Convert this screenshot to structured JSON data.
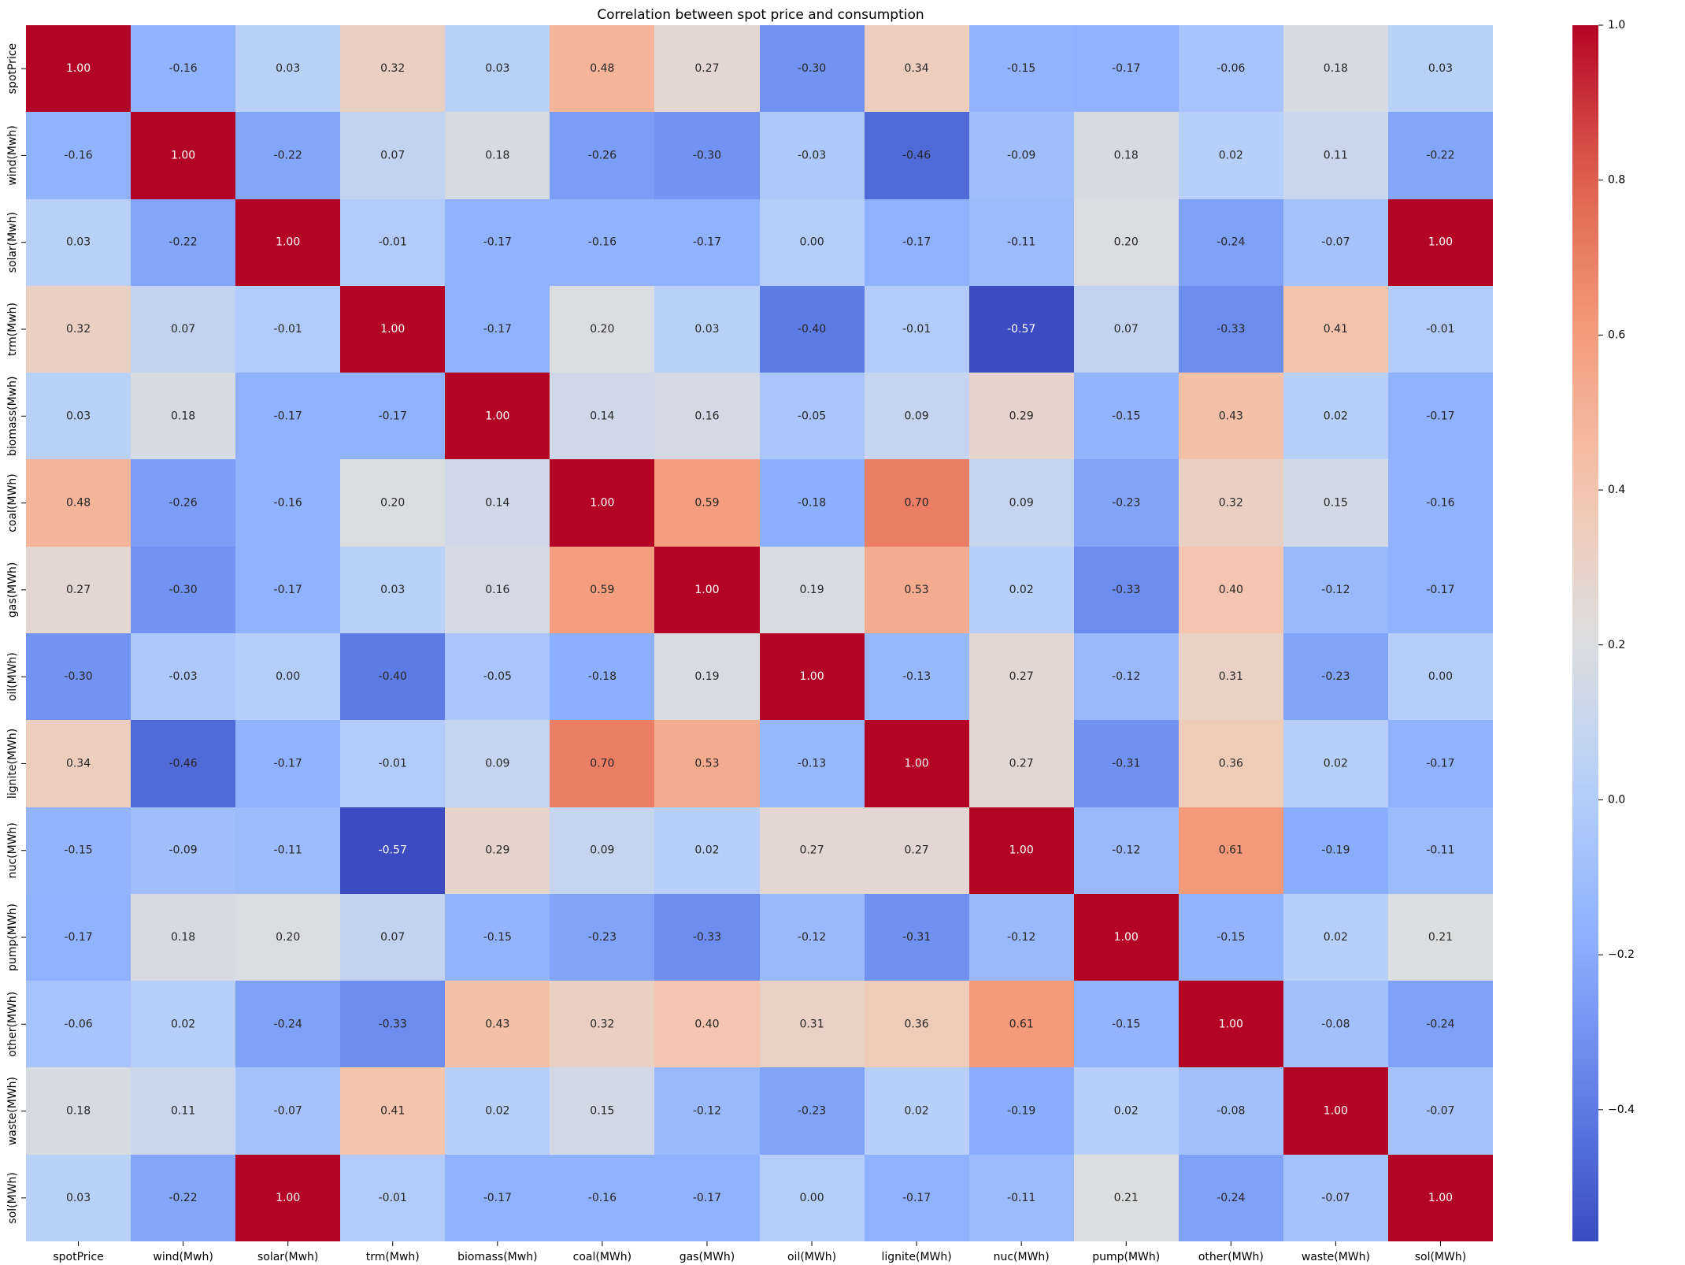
{
  "chart_data": {
    "type": "heatmap",
    "title": "Correlation between spot price and consumption",
    "xlabel": "",
    "ylabel": "",
    "x_labels": [
      "spotPrice",
      "wind(Mwh)",
      "solar(Mwh)",
      "trm(Mwh)",
      "biomass(Mwh)",
      "coal(MWh)",
      "gas(MWh)",
      "oil(MWh)",
      "lignite(MWh)",
      "nuc(MWh)",
      "pump(MWh)",
      "other(MWh)",
      "waste(MWh)",
      "sol(MWh)"
    ],
    "y_labels": [
      "spotPrice",
      "wind(Mwh)",
      "solar(Mwh)",
      "trm(Mwh)",
      "biomass(Mwh)",
      "coal(MWh)",
      "gas(MWh)",
      "oil(MWh)",
      "lignite(MWh)",
      "nuc(MWh)",
      "pump(MWh)",
      "other(MWh)",
      "waste(MWh)",
      "sol(MWh)"
    ],
    "values": [
      [
        1.0,
        -0.16,
        0.03,
        0.32,
        0.03,
        0.48,
        0.27,
        -0.3,
        0.34,
        -0.15,
        -0.17,
        -0.06,
        0.18,
        0.03
      ],
      [
        -0.16,
        1.0,
        -0.22,
        0.07,
        0.18,
        -0.26,
        -0.3,
        -0.03,
        -0.46,
        -0.09,
        0.18,
        0.02,
        0.11,
        -0.22
      ],
      [
        0.03,
        -0.22,
        1.0,
        -0.01,
        -0.17,
        -0.16,
        -0.17,
        0.0,
        -0.17,
        -0.11,
        0.2,
        -0.24,
        -0.07,
        1.0
      ],
      [
        0.32,
        0.07,
        -0.01,
        1.0,
        -0.17,
        0.2,
        0.03,
        -0.4,
        -0.01,
        -0.57,
        0.07,
        -0.33,
        0.41,
        -0.01
      ],
      [
        0.03,
        0.18,
        -0.17,
        -0.17,
        1.0,
        0.14,
        0.16,
        -0.05,
        0.09,
        0.29,
        -0.15,
        0.43,
        0.02,
        -0.17
      ],
      [
        0.48,
        -0.26,
        -0.16,
        0.2,
        0.14,
        1.0,
        0.59,
        -0.18,
        0.7,
        0.09,
        -0.23,
        0.32,
        0.15,
        -0.16
      ],
      [
        0.27,
        -0.3,
        -0.17,
        0.03,
        0.16,
        0.59,
        1.0,
        0.19,
        0.53,
        0.02,
        -0.33,
        0.4,
        -0.12,
        -0.17
      ],
      [
        -0.3,
        -0.03,
        0.0,
        -0.4,
        -0.05,
        -0.18,
        0.19,
        1.0,
        -0.13,
        0.27,
        -0.12,
        0.31,
        -0.23,
        0.0
      ],
      [
        0.34,
        -0.46,
        -0.17,
        -0.01,
        0.09,
        0.7,
        0.53,
        -0.13,
        1.0,
        0.27,
        -0.31,
        0.36,
        0.02,
        -0.17
      ],
      [
        -0.15,
        -0.09,
        -0.11,
        -0.57,
        0.29,
        0.09,
        0.02,
        0.27,
        0.27,
        1.0,
        -0.12,
        0.61,
        -0.19,
        -0.11
      ],
      [
        -0.17,
        0.18,
        0.2,
        0.07,
        -0.15,
        -0.23,
        -0.33,
        -0.12,
        -0.31,
        -0.12,
        1.0,
        -0.15,
        0.02,
        0.21
      ],
      [
        -0.06,
        0.02,
        -0.24,
        -0.33,
        0.43,
        0.32,
        0.4,
        0.31,
        0.36,
        0.61,
        -0.15,
        1.0,
        -0.08,
        -0.24
      ],
      [
        0.18,
        0.11,
        -0.07,
        0.41,
        0.02,
        0.15,
        -0.12,
        -0.23,
        0.02,
        -0.19,
        0.02,
        -0.08,
        1.0,
        -0.07
      ],
      [
        0.03,
        -0.22,
        1.0,
        -0.01,
        -0.17,
        -0.16,
        -0.17,
        0.0,
        -0.17,
        -0.11,
        0.21,
        -0.24,
        -0.07,
        1.0
      ]
    ],
    "vmin": -0.57,
    "vmax": 1.0,
    "colormap": "coolwarm",
    "colorbar_ticks": [
      "1.0",
      "0.8",
      "0.6",
      "0.4",
      "0.2",
      "0.0",
      "−0.2",
      "−0.4"
    ],
    "colorbar_tick_values": [
      1.0,
      0.8,
      0.6,
      0.4,
      0.2,
      0.0,
      -0.2,
      -0.4
    ],
    "value_format": "2 decimals",
    "grid": false,
    "legend": "colorbar right"
  }
}
